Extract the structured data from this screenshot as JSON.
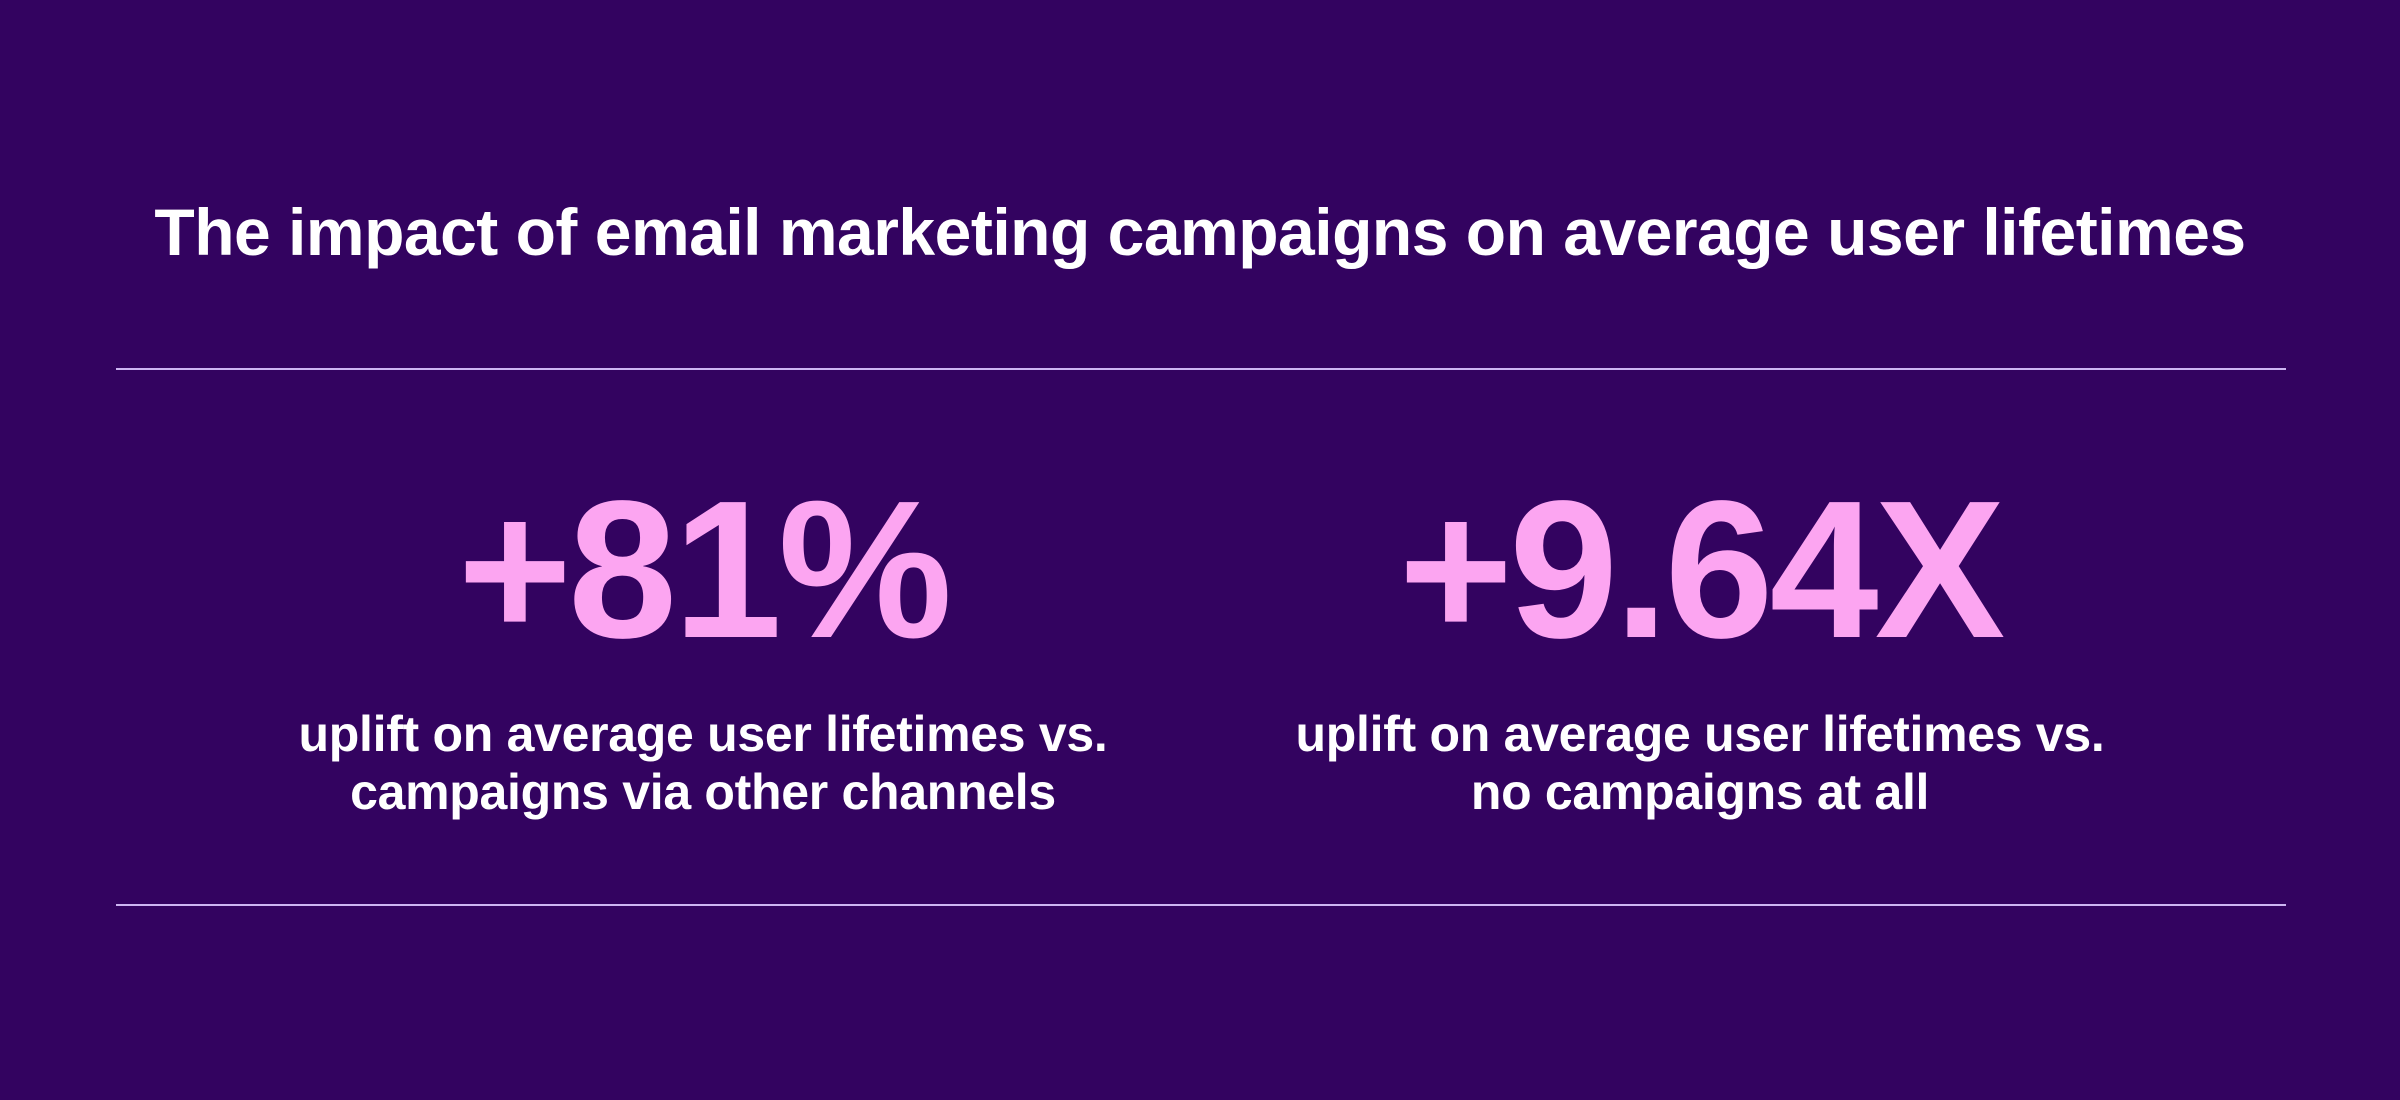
{
  "title": "The impact of email marketing campaigns on average user lifetimes",
  "colors": {
    "background": "#330360",
    "accent": "#FCA5F1",
    "text": "#FFFFFF",
    "divider": "#CDB6F3"
  },
  "stats": [
    {
      "value": "+81%",
      "caption_line1": "uplift on average user lifetimes vs.",
      "caption_line2": "campaigns via other channels"
    },
    {
      "value": "+9.64X",
      "caption_line1": "uplift on average user lifetimes vs.",
      "caption_line2": "no campaigns at all"
    }
  ]
}
